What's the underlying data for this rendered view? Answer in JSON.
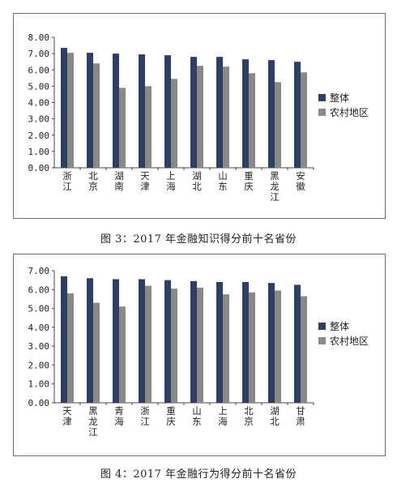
{
  "colors": {
    "overall": "#2e3f61",
    "rural": "#8a8a8a"
  },
  "charts": [
    {
      "caption": "图 3：2017 年金融知识得分前十名省份",
      "legend": [
        "整体",
        "农村地区"
      ],
      "chart_data": {
        "type": "bar",
        "categories": [
          "浙江",
          "北京",
          "湖南",
          "天津",
          "上海",
          "湖北",
          "山东",
          "重庆",
          "黑龙江",
          "安徽"
        ],
        "series": [
          {
            "name": "整体",
            "values": [
              7.35,
              7.05,
              7.0,
              6.95,
              6.9,
              6.8,
              6.8,
              6.65,
              6.6,
              6.5
            ]
          },
          {
            "name": "农村地区",
            "values": [
              7.05,
              6.4,
              4.9,
              5.0,
              5.45,
              6.25,
              6.2,
              5.8,
              5.25,
              5.85
            ]
          }
        ],
        "ylim": [
          0,
          8
        ],
        "yticks": [
          "0.00",
          "1.00",
          "2.00",
          "3.00",
          "4.00",
          "5.00",
          "6.00",
          "7.00",
          "8.00"
        ],
        "legend_position": "right"
      }
    },
    {
      "caption": "图 4：2017 年金融行为得分前十名省份",
      "legend": [
        "整体",
        "农村地区"
      ],
      "chart_data": {
        "type": "bar",
        "categories": [
          "天津",
          "黑龙江",
          "青海",
          "浙江",
          "重庆",
          "山东",
          "上海",
          "北京",
          "湖北",
          "甘肃"
        ],
        "series": [
          {
            "name": "整体",
            "values": [
              6.7,
              6.6,
              6.55,
              6.55,
              6.5,
              6.45,
              6.4,
              6.4,
              6.35,
              6.25
            ]
          },
          {
            "name": "农村地区",
            "values": [
              5.8,
              5.3,
              5.1,
              6.2,
              6.05,
              6.1,
              5.75,
              5.85,
              5.95,
              5.65
            ]
          }
        ],
        "ylim": [
          0,
          7
        ],
        "yticks": [
          "0.00",
          "1.00",
          "2.00",
          "3.00",
          "4.00",
          "5.00",
          "6.00",
          "7.00"
        ],
        "legend_position": "right"
      }
    }
  ]
}
